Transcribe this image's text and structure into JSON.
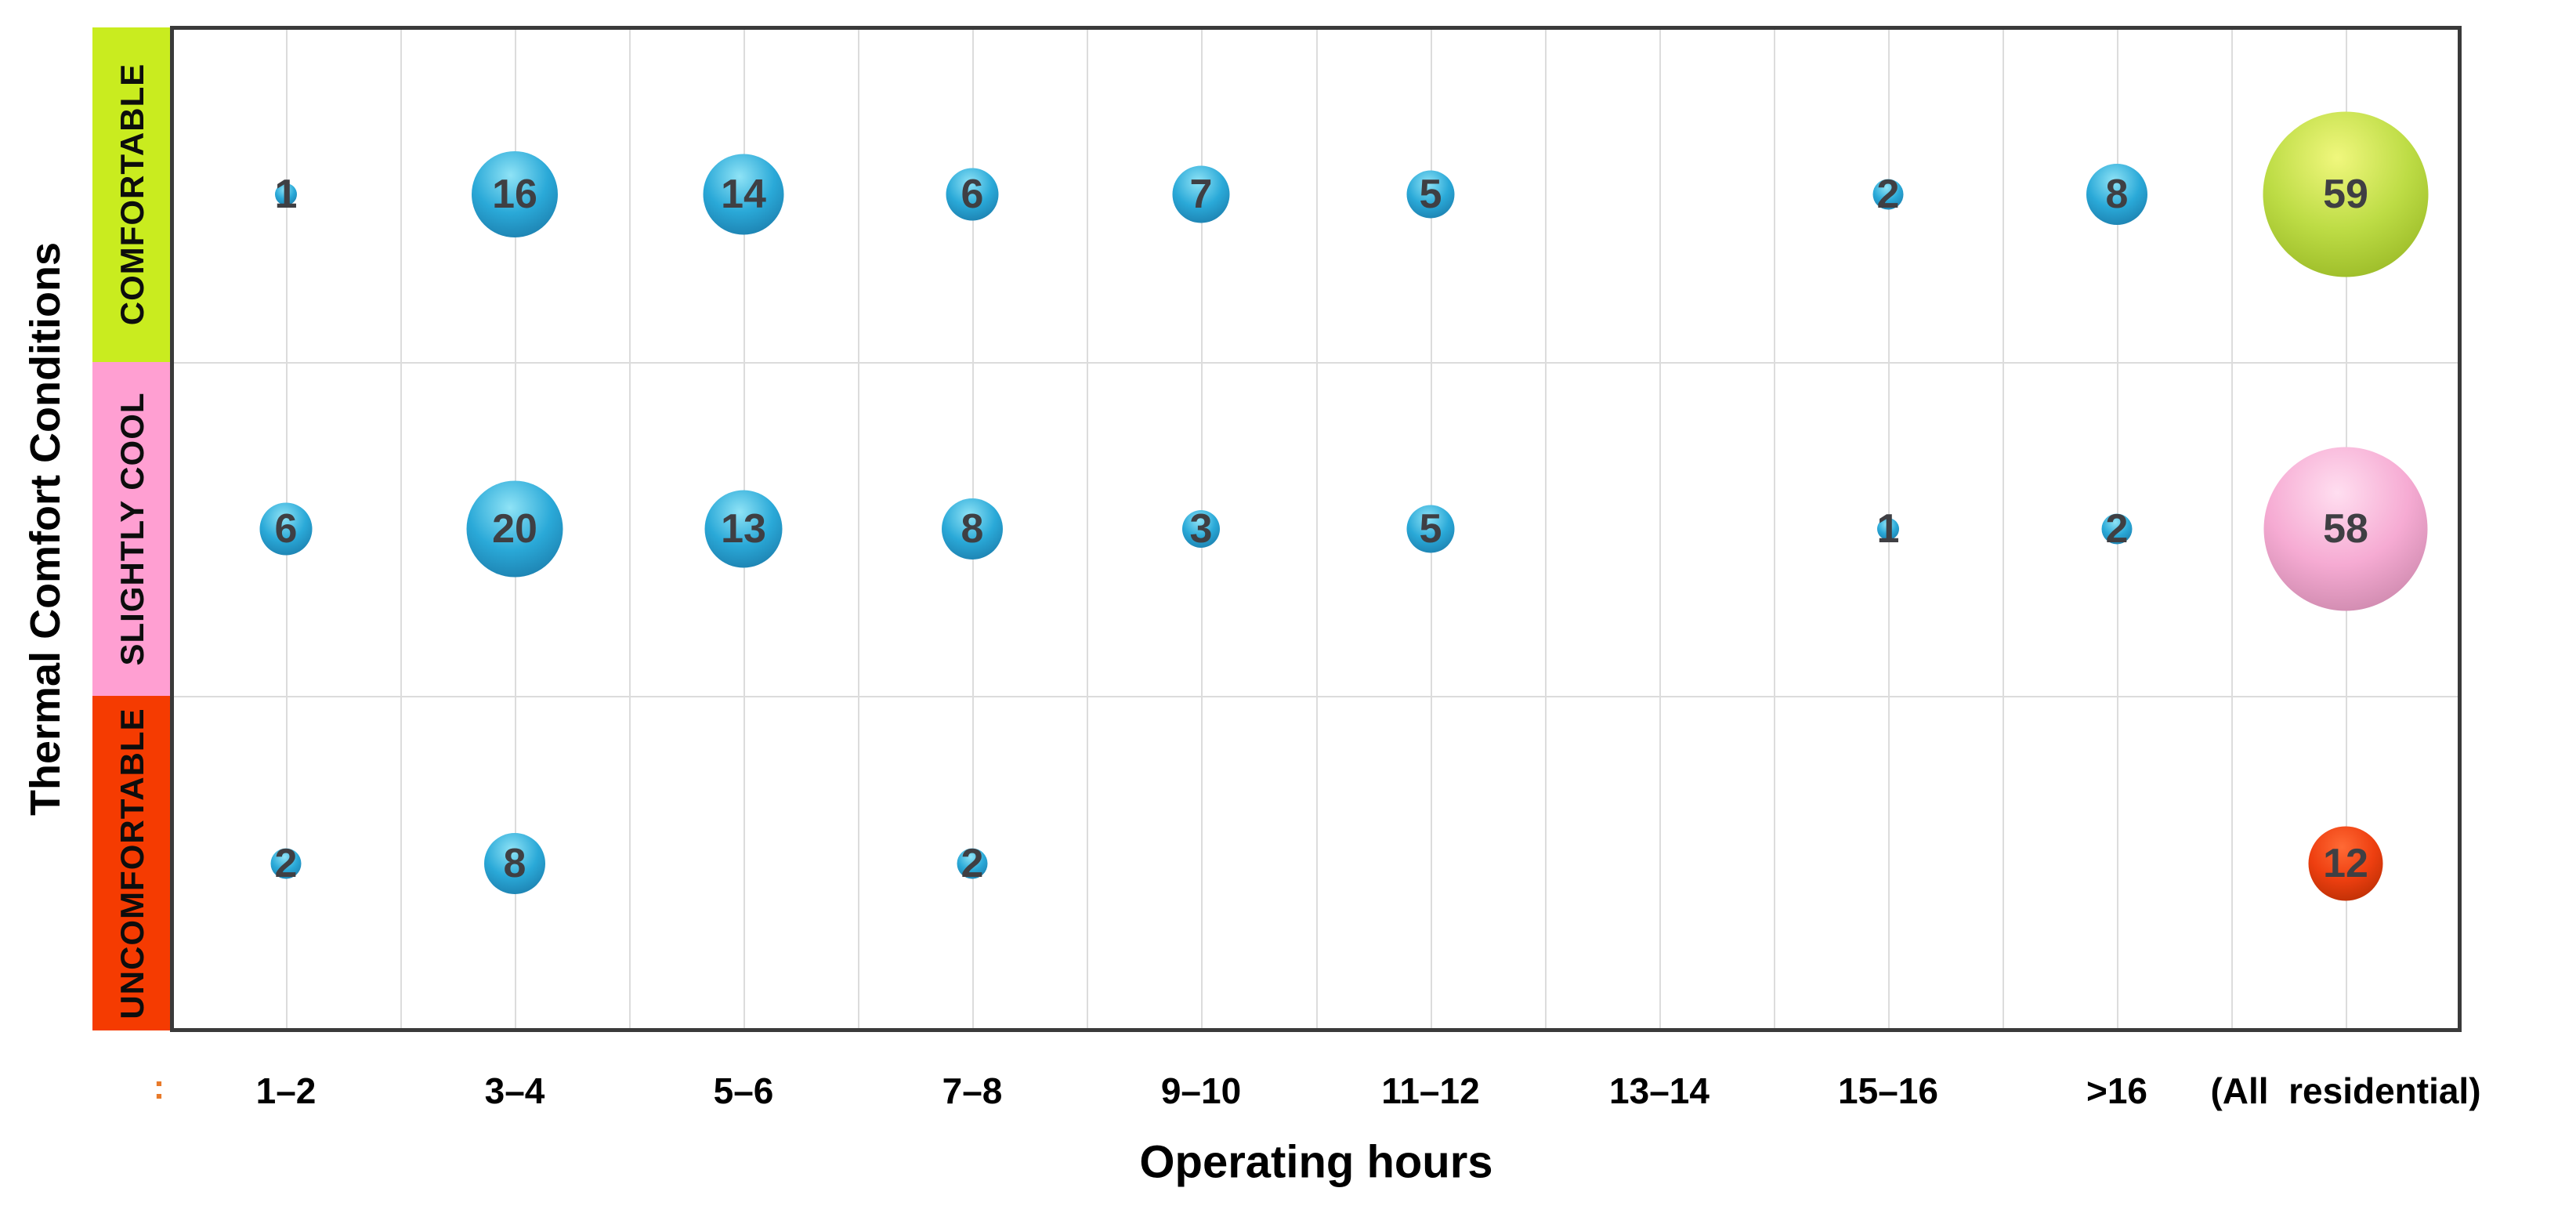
{
  "page": {
    "background": "#ffffff",
    "description": "Bubble chart of thermal comfort survey counts by HVAC operating hours"
  },
  "chart_data": {
    "type": "scatter",
    "subtype": "bubble-matrix",
    "title": "",
    "xlabel": "Operating hours",
    "ylabel": "Thermal Comfort Conditions",
    "x_categories": [
      "1–2",
      "3–4",
      "5–6",
      "7–8",
      "9–10",
      "11–12",
      "13–14",
      "15–16",
      ">16",
      "(All  residential)"
    ],
    "y_categories": [
      "COMFORTABLE",
      "SLIGHTLY COOL",
      "UNCOMFORTABLE"
    ],
    "series": [
      {
        "name": "COMFORTABLE",
        "values": [
          1,
          16,
          14,
          6,
          7,
          5,
          null,
          2,
          8,
          59
        ]
      },
      {
        "name": "SLIGHTLY COOL",
        "values": [
          6,
          20,
          13,
          8,
          3,
          5,
          null,
          1,
          2,
          58
        ]
      },
      {
        "name": "UNCOMFORTABLE",
        "values": [
          2,
          8,
          null,
          2,
          null,
          null,
          null,
          null,
          null,
          12
        ]
      }
    ],
    "size_rule": "bubble area proportional to value; last column shows row totals",
    "grid": true,
    "legend": false,
    "axis_note": "x axis categorical, 10 columns; y axis categorical, 3 color bands"
  },
  "colors": {
    "band_fills": [
      "#c9ec1f",
      "#ff9fd2",
      "#f53b01"
    ],
    "bubble_blue": {
      "highlight": "#8fe3f6",
      "mid": "#2aa9d8",
      "edge": "#176f9e"
    },
    "bubble_green": {
      "highlight": "#f0f77d",
      "mid": "#bddc45",
      "edge": "#8dad1b"
    },
    "bubble_pink": {
      "highlight": "#ffdef0",
      "mid": "#f6abd3",
      "edge": "#bd7b9e"
    },
    "bubble_red": {
      "highlight": "#ff6a35",
      "mid": "#ee3f10",
      "edge": "#a82900"
    },
    "total_column_palettes": [
      "bubble_green",
      "bubble_pink",
      "bubble_red"
    ],
    "gridline": "#dcdcdc",
    "plot_border": "#3a3a3a",
    "value_label": "#3f3f43",
    "tick_label": "#000000",
    "stray_tick": "#e87a2a"
  },
  "annotations": {
    "stray_tick": ":"
  }
}
